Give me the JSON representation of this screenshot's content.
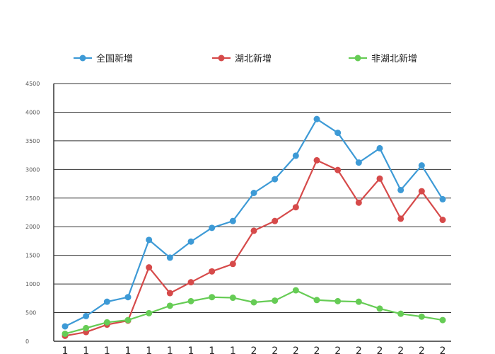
{
  "chart_data": {
    "type": "line",
    "title": "",
    "xlabel": "",
    "ylabel": "",
    "ylim": [
      0,
      4500
    ],
    "yticks": [
      0,
      500,
      1000,
      1500,
      2000,
      2500,
      3000,
      3500,
      4000,
      4500
    ],
    "ytick_labels": [
      "0",
      "500",
      "1000",
      "1500",
      "2000",
      "2500",
      "3000",
      "3500",
      "4000",
      "4500"
    ],
    "x": [
      1,
      2,
      3,
      4,
      5,
      6,
      7,
      8,
      9,
      10,
      11,
      12,
      13,
      14,
      15,
      16,
      17,
      18,
      19
    ],
    "x_tick_labels": [
      "1",
      "1",
      "1",
      "1",
      "1",
      "1",
      "1",
      "1",
      "1",
      "2",
      "2",
      "2",
      "2",
      "2",
      "2",
      "2",
      "2",
      "2",
      "2"
    ],
    "grid": "horizontal",
    "legend_position": "top",
    "series": [
      {
        "name": "全国新增",
        "color": "#3d9ad6",
        "values": [
          260,
          440,
          690,
          770,
          1770,
          1460,
          1740,
          1980,
          2100,
          2590,
          2830,
          3240,
          3880,
          3640,
          3120,
          3370,
          2640,
          3070,
          2480
        ]
      },
      {
        "name": "湖北新增",
        "color": "#d64a4a",
        "values": [
          95,
          160,
          290,
          360,
          1290,
          840,
          1030,
          1220,
          1350,
          1930,
          2100,
          2340,
          3160,
          2990,
          2420,
          2840,
          2140,
          2620,
          2120
        ]
      },
      {
        "name": "非湖北新增",
        "color": "#66cc55",
        "values": [
          130,
          230,
          330,
          370,
          490,
          620,
          700,
          770,
          760,
          680,
          710,
          890,
          720,
          700,
          690,
          570,
          480,
          430,
          370
        ]
      }
    ]
  }
}
